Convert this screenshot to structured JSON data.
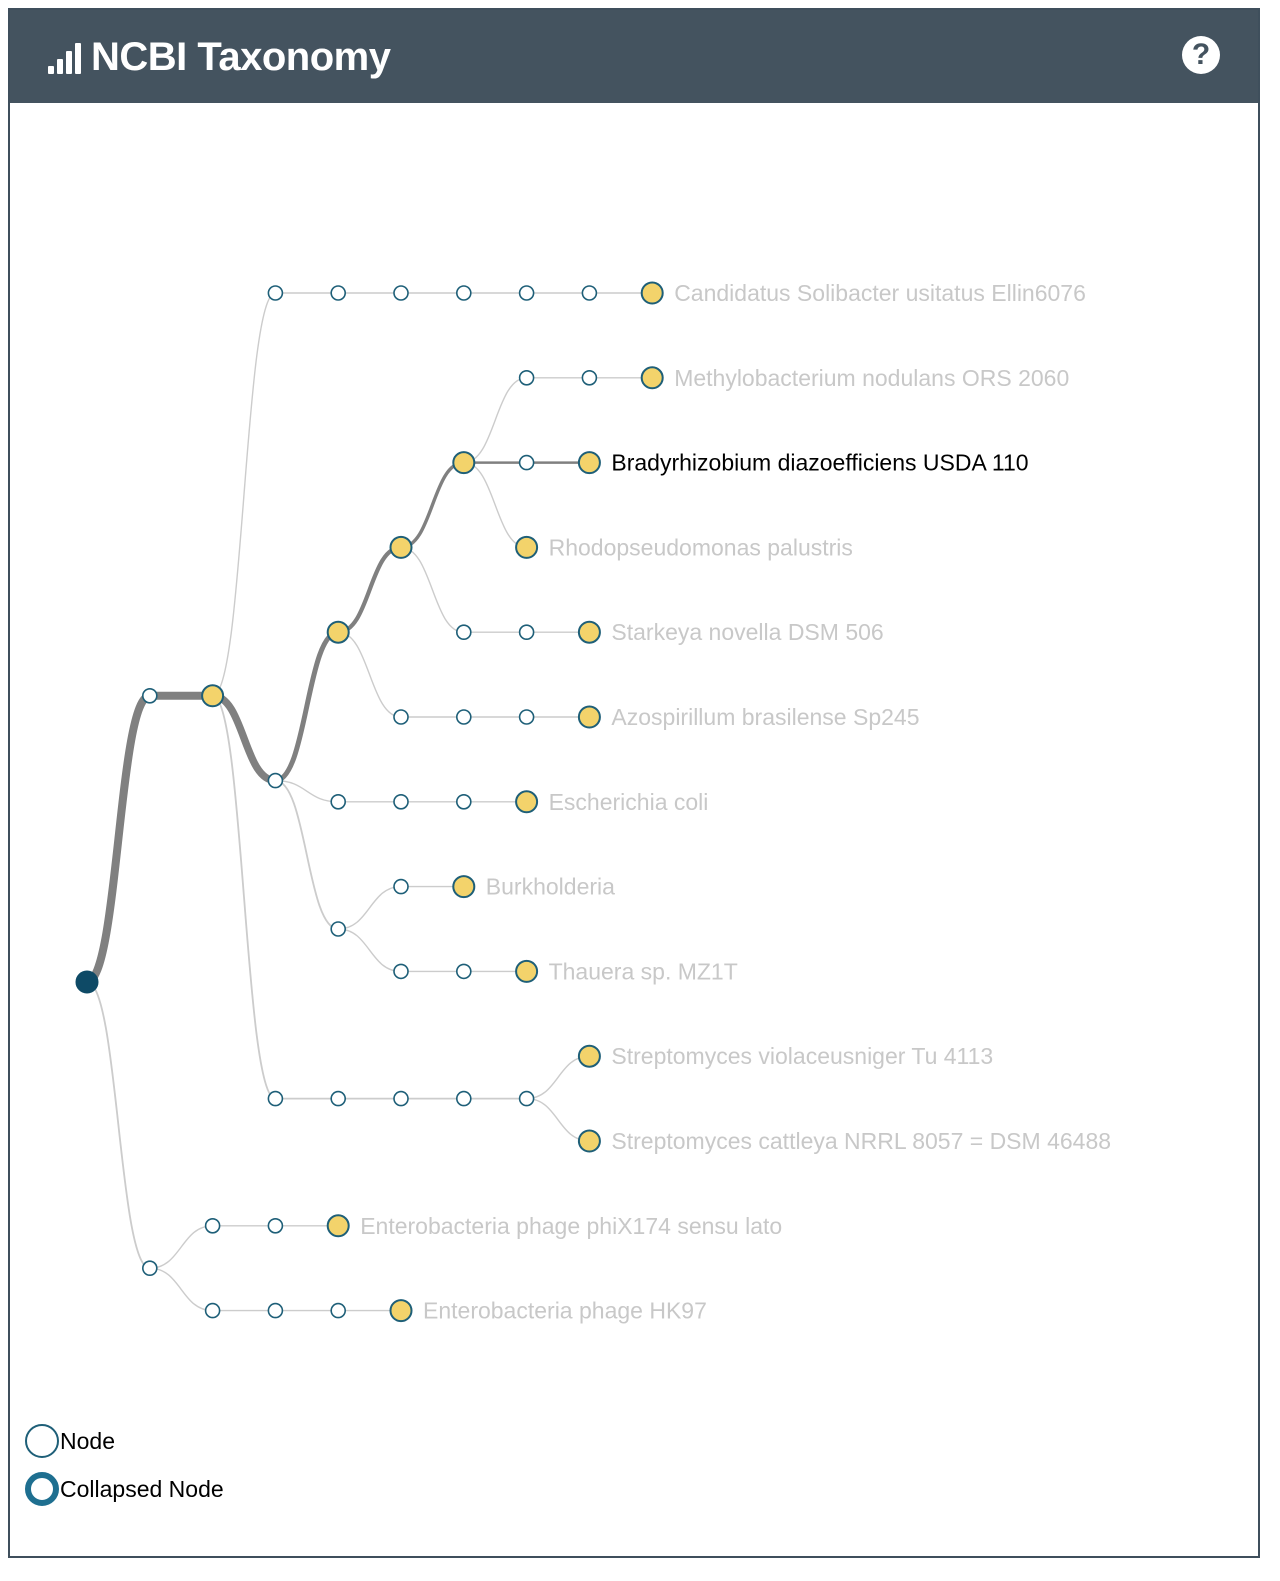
{
  "header": {
    "title": "NCBI Taxonomy",
    "icon": "bar-chart-icon",
    "help_icon": "help-icon",
    "help_symbol": "?"
  },
  "colors": {
    "header_bg": "#44535f",
    "node_stroke": "#1e5f78",
    "root_fill": "#0e4a66",
    "leaf_fill": "#f3d36b",
    "link_light": "#cccccc",
    "link_dark": "#808080",
    "label_light": "#c8c8c8",
    "label_dark": "#000000"
  },
  "tree": {
    "root": "root",
    "nodes": [
      {
        "id": "root",
        "parent": null,
        "type": "root"
      },
      {
        "id": "n1",
        "parent": "root",
        "type": "node"
      },
      {
        "id": "n2",
        "parent": "n1",
        "type": "leaf-marker"
      },
      {
        "id": "c1",
        "parent": "n2",
        "type": "node"
      },
      {
        "id": "c2",
        "parent": "c1",
        "type": "node"
      },
      {
        "id": "c3",
        "parent": "c2",
        "type": "node"
      },
      {
        "id": "c4",
        "parent": "c3",
        "type": "node"
      },
      {
        "id": "c5",
        "parent": "c4",
        "type": "node"
      },
      {
        "id": "c6",
        "parent": "c5",
        "type": "node"
      },
      {
        "id": "c7",
        "parent": "c6",
        "type": "node"
      },
      {
        "id": "cL",
        "parent": "c7",
        "type": "leaf",
        "label": "Candidatus Solibacter usitatus Ellin6076"
      },
      {
        "id": "p1",
        "parent": "n2",
        "type": "node"
      },
      {
        "id": "a1",
        "parent": "p1",
        "type": "leaf-marker"
      },
      {
        "id": "a2",
        "parent": "a1",
        "type": "leaf-marker"
      },
      {
        "id": "a3",
        "parent": "a2",
        "type": "leaf-marker"
      },
      {
        "id": "m1",
        "parent": "a3",
        "type": "node"
      },
      {
        "id": "m2",
        "parent": "m1",
        "type": "node"
      },
      {
        "id": "m3",
        "parent": "m2",
        "type": "node"
      },
      {
        "id": "mL",
        "parent": "m3",
        "type": "leaf",
        "label": "Methylobacterium nodulans ORS 2060"
      },
      {
        "id": "b1",
        "parent": "a3",
        "type": "node"
      },
      {
        "id": "b2",
        "parent": "b1",
        "type": "node"
      },
      {
        "id": "bL",
        "parent": "b2",
        "type": "leaf",
        "label": "Bradyrhizobium diazoefficiens USDA 110",
        "selected": true
      },
      {
        "id": "r1",
        "parent": "a3",
        "type": "node"
      },
      {
        "id": "rL",
        "parent": "r1",
        "type": "leaf",
        "label": "Rhodopseudomonas palustris"
      },
      {
        "id": "s1",
        "parent": "a2",
        "type": "node"
      },
      {
        "id": "s2",
        "parent": "s1",
        "type": "node"
      },
      {
        "id": "s3",
        "parent": "s2",
        "type": "node"
      },
      {
        "id": "sL",
        "parent": "s3",
        "type": "leaf",
        "label": "Starkeya novella DSM 506"
      },
      {
        "id": "z1",
        "parent": "a1",
        "type": "node"
      },
      {
        "id": "z2",
        "parent": "z1",
        "type": "node"
      },
      {
        "id": "z3",
        "parent": "z2",
        "type": "node"
      },
      {
        "id": "z4",
        "parent": "z3",
        "type": "node"
      },
      {
        "id": "zL",
        "parent": "z4",
        "type": "leaf",
        "label": "Azospirillum brasilense Sp245"
      },
      {
        "id": "e1",
        "parent": "p1",
        "type": "node"
      },
      {
        "id": "e2",
        "parent": "e1",
        "type": "node"
      },
      {
        "id": "e3",
        "parent": "e2",
        "type": "node"
      },
      {
        "id": "e4",
        "parent": "e3",
        "type": "leaf-marker"
      },
      {
        "id": "eL",
        "parent": "e4",
        "type": "leaf",
        "label": "Escherichia coli"
      },
      {
        "id": "k0",
        "parent": "p1",
        "type": "node"
      },
      {
        "id": "k1",
        "parent": "k0",
        "type": "node"
      },
      {
        "id": "k2",
        "parent": "k1",
        "type": "node"
      },
      {
        "id": "kL",
        "parent": "k2",
        "type": "leaf",
        "label": "Burkholderia"
      },
      {
        "id": "t1",
        "parent": "k0",
        "type": "node"
      },
      {
        "id": "t2",
        "parent": "t1",
        "type": "node"
      },
      {
        "id": "t3",
        "parent": "t2",
        "type": "node"
      },
      {
        "id": "tL",
        "parent": "t3",
        "type": "leaf",
        "label": "Thauera sp. MZ1T"
      },
      {
        "id": "q1",
        "parent": "n2",
        "type": "node"
      },
      {
        "id": "q2",
        "parent": "q1",
        "type": "node"
      },
      {
        "id": "q3",
        "parent": "q2",
        "type": "node"
      },
      {
        "id": "q4",
        "parent": "q3",
        "type": "node"
      },
      {
        "id": "q5",
        "parent": "q4",
        "type": "node"
      },
      {
        "id": "v1",
        "parent": "q5",
        "type": "node"
      },
      {
        "id": "vL",
        "parent": "v1",
        "type": "leaf",
        "label": "Streptomyces violaceusniger Tu 4113"
      },
      {
        "id": "w1",
        "parent": "q5",
        "type": "node"
      },
      {
        "id": "wL",
        "parent": "w1",
        "type": "leaf",
        "label": "Streptomyces cattleya NRRL 8057 = DSM 46488"
      },
      {
        "id": "g0",
        "parent": "root",
        "type": "node"
      },
      {
        "id": "g1",
        "parent": "g0",
        "type": "node"
      },
      {
        "id": "g2",
        "parent": "g1",
        "type": "node"
      },
      {
        "id": "g3",
        "parent": "g2",
        "type": "node"
      },
      {
        "id": "gL",
        "parent": "g3",
        "type": "leaf",
        "label": "Enterobacteria phage phiX174 sensu lato"
      },
      {
        "id": "h1",
        "parent": "g0",
        "type": "node"
      },
      {
        "id": "h2",
        "parent": "h1",
        "type": "node"
      },
      {
        "id": "h3",
        "parent": "h2",
        "type": "node"
      },
      {
        "id": "h4",
        "parent": "h3",
        "type": "node"
      },
      {
        "id": "hL",
        "parent": "h4",
        "type": "leaf",
        "label": "Enterobacteria phage HK97"
      }
    ],
    "highlight_path": [
      "root",
      "n1",
      "n2",
      "p1",
      "a1",
      "a2",
      "a3",
      "b1",
      "b2",
      "bL"
    ]
  },
  "legend": {
    "node_label": "Node",
    "collapsed_label": "Collapsed Node"
  }
}
